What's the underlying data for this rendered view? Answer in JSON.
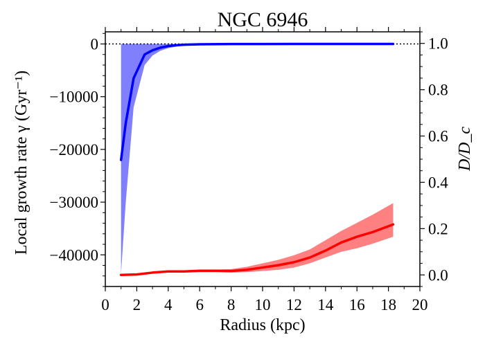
{
  "chart_data": {
    "type": "line",
    "title": "NGC 6946",
    "xlabel": "Radius (kpc)",
    "ylabel_left": "Local growth rate γ (Gyr⁻¹)",
    "ylabel_right": "D/D_c",
    "xlim": [
      0,
      20
    ],
    "ylim_left": [
      -46000,
      2300
    ],
    "ylim_right": [
      -0.05,
      1.05
    ],
    "x_ticks": [
      0,
      2,
      4,
      6,
      8,
      10,
      12,
      14,
      16,
      18,
      20
    ],
    "y_left_ticks": [
      0,
      -10000,
      -20000,
      -30000,
      -40000
    ],
    "y_left_tick_labels": [
      "0",
      "−10000",
      "−20000",
      "−30000",
      "−40000"
    ],
    "y_right_ticks": [
      0.0,
      0.2,
      0.4,
      0.6,
      0.8,
      1.0
    ],
    "y_right_tick_labels": [
      "0.0",
      "0.2",
      "0.4",
      "0.6",
      "0.8",
      "1.0"
    ],
    "reference_line": {
      "y": 0,
      "style": "dotted",
      "color": "#000000"
    },
    "series": [
      {
        "axis": "left",
        "color": "#0000ff",
        "band_color": "#8080ff",
        "x": [
          1.0,
          1.3,
          1.8,
          2.5,
          3.0,
          3.5,
          4.0,
          4.5,
          5.0,
          6.0,
          8.0,
          10.0,
          12.0,
          14.0,
          16.0,
          18.3
        ],
        "values": [
          -22000,
          -15000,
          -6500,
          -2000,
          -1200,
          -700,
          -400,
          -250,
          -150,
          -60,
          -20,
          -10,
          -5,
          -3,
          -2,
          -2
        ],
        "band_lower": [
          -43500,
          -30000,
          -12000,
          -4000,
          -2200,
          -1300,
          -800,
          -500,
          -300,
          -120,
          -40,
          -20,
          -10,
          -6,
          -4,
          -4
        ],
        "band_upper": [
          0,
          0,
          0,
          0,
          0,
          0,
          0,
          0,
          0,
          0,
          0,
          0,
          0,
          0,
          0,
          0
        ]
      },
      {
        "axis": "right",
        "color": "#ff0000",
        "band_color": "#ff8080",
        "x": [
          1.0,
          2.0,
          3.0,
          4.0,
          5.0,
          6.0,
          7.0,
          8.0,
          9.0,
          10.0,
          11.0,
          12.0,
          13.0,
          14.0,
          15.0,
          16.0,
          17.0,
          18.3
        ],
        "values": [
          0.0,
          0.002,
          0.01,
          0.015,
          0.015,
          0.018,
          0.018,
          0.017,
          0.022,
          0.032,
          0.042,
          0.055,
          0.075,
          0.105,
          0.14,
          0.165,
          0.185,
          0.218
        ],
        "band_lower": [
          0.0,
          0.0,
          0.006,
          0.01,
          0.01,
          0.012,
          0.012,
          0.01,
          0.012,
          0.017,
          0.022,
          0.032,
          0.05,
          0.075,
          0.1,
          0.115,
          0.135,
          0.165
        ],
        "band_upper": [
          0.0,
          0.004,
          0.014,
          0.02,
          0.02,
          0.022,
          0.023,
          0.025,
          0.035,
          0.05,
          0.065,
          0.085,
          0.11,
          0.15,
          0.19,
          0.225,
          0.26,
          0.31
        ]
      }
    ]
  }
}
